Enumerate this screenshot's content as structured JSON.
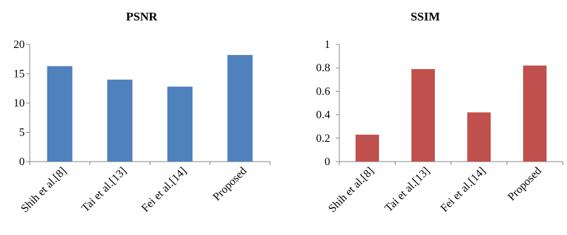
{
  "chart_data": [
    {
      "type": "bar",
      "title": "PSNR",
      "categories": [
        "Shih et al.[8]",
        "Tai et al.[13]",
        "Fei et al.[14]",
        "Proposed"
      ],
      "values": [
        16.3,
        14.0,
        12.8,
        18.2
      ],
      "yticks": [
        "0",
        "5",
        "10",
        "15",
        "20"
      ],
      "ylim": [
        0,
        20
      ],
      "color": "#4F81BD",
      "grid": false
    },
    {
      "type": "bar",
      "title": "SSIM",
      "categories": [
        "Shih et al.[8]",
        "Tai et al.[13]",
        "Fei et al.[14]",
        "Proposed"
      ],
      "values": [
        0.23,
        0.79,
        0.42,
        0.82
      ],
      "yticks": [
        "0",
        "0.2",
        "0.4",
        "0.6",
        "0.8",
        "1"
      ],
      "ylim": [
        0,
        1
      ],
      "color": "#C0504D",
      "grid": false
    }
  ]
}
